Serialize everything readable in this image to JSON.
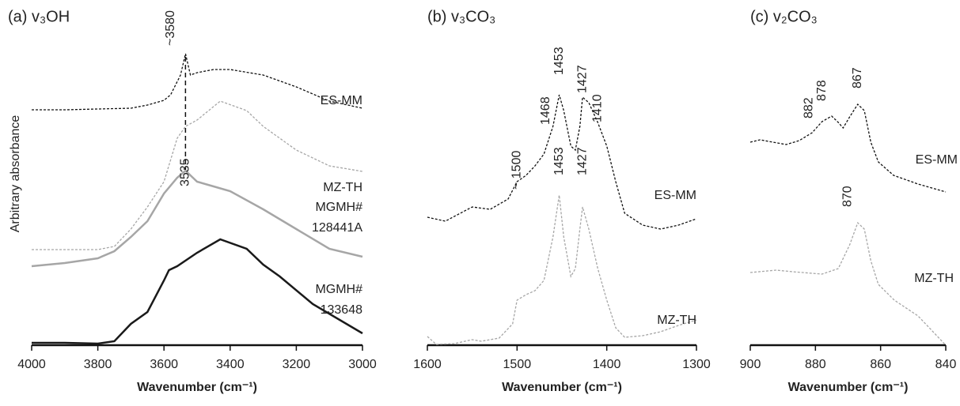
{
  "chart_data": [
    {
      "type": "line",
      "title": "(a) v₃OH",
      "x_label": "Wavenumber (cm⁻¹)",
      "y_label": "Arbitrary absorbance",
      "xlim": [
        4000,
        3000
      ],
      "xticks": [
        4000,
        3800,
        3600,
        3400,
        3200,
        3000
      ],
      "ylim": [
        0,
        400
      ],
      "series": [
        {
          "name": "ES-MM",
          "color": "#111111",
          "style": "dashed",
          "width": 1.3,
          "x": [
            4000,
            3900,
            3800,
            3700,
            3650,
            3600,
            3580,
            3550,
            3535,
            3520,
            3500,
            3450,
            3400,
            3300,
            3200,
            3100,
            3000
          ],
          "values": [
            298,
            298,
            299,
            300,
            304,
            310,
            317,
            342,
            369,
            342,
            345,
            349,
            349,
            342,
            327,
            309,
            300
          ]
        },
        {
          "name": "MZ-TH",
          "color": "#a6a6a6",
          "style": "dashed",
          "width": 1.3,
          "x": [
            4000,
            3900,
            3800,
            3750,
            3700,
            3650,
            3600,
            3560,
            3535,
            3500,
            3430,
            3350,
            3300,
            3200,
            3100,
            3000
          ],
          "values": [
            121,
            121,
            121,
            125,
            147,
            175,
            207,
            262,
            277,
            285,
            309,
            297,
            277,
            247,
            227,
            220
          ]
        },
        {
          "name": "MGMH# 128441A",
          "color": "#a6a6a6",
          "style": "solid",
          "width": 2.5,
          "x": [
            4000,
            3900,
            3800,
            3750,
            3700,
            3650,
            3600,
            3560,
            3535,
            3500,
            3450,
            3400,
            3300,
            3200,
            3100,
            3000
          ],
          "values": [
            100,
            104,
            110,
            119,
            137,
            157,
            192,
            212,
            221,
            207,
            201,
            195,
            172,
            147,
            122,
            112
          ]
        },
        {
          "name": "MGMH# 133648",
          "color": "#1a1a1a",
          "style": "solid",
          "width": 2.5,
          "x": [
            4000,
            3900,
            3800,
            3750,
            3700,
            3650,
            3600,
            3585,
            3560,
            3500,
            3430,
            3350,
            3300,
            3250,
            3150,
            3000
          ],
          "values": [
            3,
            3,
            2,
            5,
            27,
            42,
            82,
            95,
            100,
            117,
            134,
            122,
            102,
            87,
            52,
            15
          ]
        }
      ],
      "annotations": [
        {
          "text": "3535",
          "x": 3535
        },
        {
          "text": "~3580",
          "x": 3580
        }
      ]
    },
    {
      "type": "line",
      "title": "(b) v₃CO₃",
      "x_label": "Wavenumber (cm⁻¹)",
      "xlim": [
        1600,
        1300
      ],
      "xticks": [
        1600,
        1500,
        1400,
        1300
      ],
      "ylim": [
        0,
        400
      ],
      "series": [
        {
          "name": "ES-MM",
          "color": "#111111",
          "style": "dashed",
          "width": 1.3,
          "x": [
            1600,
            1580,
            1560,
            1550,
            1530,
            1510,
            1500,
            1490,
            1480,
            1470,
            1460,
            1453,
            1448,
            1440,
            1435,
            1430,
            1427,
            1420,
            1410,
            1400,
            1390,
            1380,
            1360,
            1340,
            1320,
            1300
          ],
          "values": [
            162,
            157,
            169,
            175,
            172,
            185,
            207,
            215,
            227,
            242,
            277,
            317,
            297,
            252,
            247,
            277,
            314,
            307,
            282,
            252,
            207,
            167,
            152,
            147,
            152,
            160
          ]
        },
        {
          "name": "MZ-TH",
          "color": "#a6a6a6",
          "style": "dashed",
          "width": 1.3,
          "x": [
            1600,
            1590,
            1570,
            1550,
            1540,
            1520,
            1505,
            1500,
            1490,
            1480,
            1470,
            1460,
            1453,
            1448,
            1440,
            1435,
            1430,
            1427,
            1420,
            1410,
            1400,
            1390,
            1380,
            1360,
            1340,
            1320,
            1300
          ],
          "values": [
            11,
            1,
            2,
            7,
            5,
            9,
            27,
            57,
            64,
            69,
            82,
            137,
            190,
            137,
            87,
            97,
            147,
            175,
            147,
            97,
            57,
            22,
            10,
            12,
            17,
            25,
            32
          ]
        }
      ],
      "annotations": [
        {
          "text": "~ 1500",
          "x": 1500
        },
        {
          "text": "1468",
          "x": 1468
        },
        {
          "text": "1453",
          "x": 1453
        },
        {
          "text": "1427",
          "x": 1427
        },
        {
          "text": "1410",
          "x": 1410
        },
        {
          "text": "1453",
          "x": 1453
        },
        {
          "text": "1427",
          "x": 1427
        }
      ]
    },
    {
      "type": "line",
      "title": "(c) v₂CO₃",
      "x_label": "Wavenumber (cm⁻¹)",
      "xlim": [
        900,
        840
      ],
      "xticks": [
        900,
        880,
        860,
        840
      ],
      "ylim": [
        0,
        400
      ],
      "series": [
        {
          "name": "ES-MM",
          "color": "#111111",
          "style": "dashed",
          "width": 1.3,
          "x": [
            900,
            897,
            893,
            889,
            885,
            881,
            878,
            875,
            873,
            871.5,
            869.5,
            867,
            865,
            863,
            860.7,
            856,
            848.5,
            840
          ],
          "values": [
            257,
            260,
            257,
            254,
            259,
            269,
            283,
            290,
            282,
            275,
            289,
            305,
            297,
            257,
            232,
            215,
            204,
            194
          ]
        },
        {
          "name": "MZ-TH",
          "color": "#a6a6a6",
          "style": "dashed",
          "width": 1.3,
          "x": [
            900,
            892,
            887,
            878,
            873,
            869.5,
            867,
            865,
            863,
            860.7,
            855.8,
            848.5,
            840
          ],
          "values": [
            92,
            95,
            93,
            90,
            97,
            127,
            155,
            147,
            107,
            77,
            57,
            37,
            0
          ]
        }
      ],
      "annotations": [
        {
          "text": "882",
          "x": 882
        },
        {
          "text": "878",
          "x": 878
        },
        {
          "text": "867",
          "x": 867
        },
        {
          "text": "870",
          "x": 870
        }
      ]
    }
  ]
}
